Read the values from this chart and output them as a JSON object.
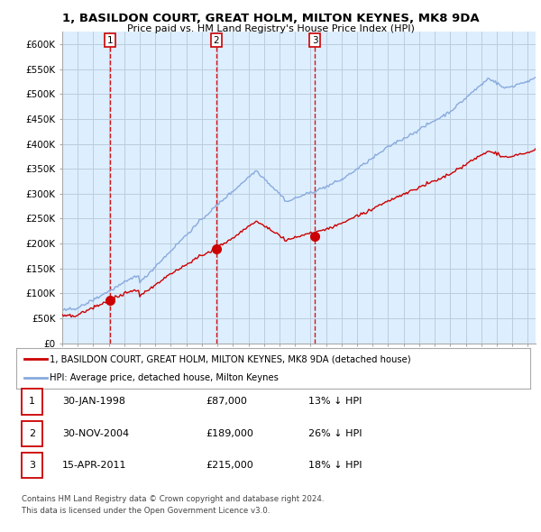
{
  "title": "1, BASILDON COURT, GREAT HOLM, MILTON KEYNES, MK8 9DA",
  "subtitle": "Price paid vs. HM Land Registry's House Price Index (HPI)",
  "ylabel_ticks": [
    "£0",
    "£50K",
    "£100K",
    "£150K",
    "£200K",
    "£250K",
    "£300K",
    "£350K",
    "£400K",
    "£450K",
    "£500K",
    "£550K",
    "£600K"
  ],
  "ylim": [
    0,
    620000
  ],
  "ytick_vals": [
    0,
    50000,
    100000,
    150000,
    200000,
    250000,
    300000,
    350000,
    400000,
    450000,
    500000,
    550000,
    600000
  ],
  "sale_prices": [
    87000,
    189000,
    215000
  ],
  "sale_years_decimal": [
    1998.08,
    2004.92,
    2011.29
  ],
  "sale_labels": [
    "1",
    "2",
    "3"
  ],
  "sale_info": [
    {
      "label": "1",
      "date": "30-JAN-1998",
      "price": "£87,000",
      "pct": "13% ↓ HPI"
    },
    {
      "label": "2",
      "date": "30-NOV-2004",
      "price": "£189,000",
      "pct": "26% ↓ HPI"
    },
    {
      "label": "3",
      "date": "15-APR-2011",
      "price": "£215,000",
      "pct": "18% ↓ HPI"
    }
  ],
  "legend_line1": "1, BASILDON COURT, GREAT HOLM, MILTON KEYNES, MK8 9DA (detached house)",
  "legend_line2": "HPI: Average price, detached house, Milton Keynes",
  "footnote1": "Contains HM Land Registry data © Crown copyright and database right 2024.",
  "footnote2": "This data is licensed under the Open Government Licence v3.0.",
  "line_color_sale": "#cc0000",
  "line_color_hpi": "#88aadd",
  "vline_color": "#cc0000",
  "background_color": "#ffffff",
  "chart_bg": "#ddeeff",
  "grid_color": "#bbccdd"
}
